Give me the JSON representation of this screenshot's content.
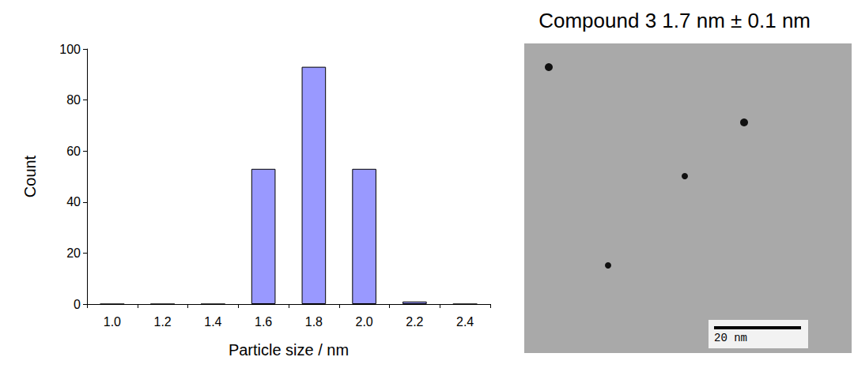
{
  "chart_data": {
    "type": "bar",
    "title": "Compound 3 1.7 nm ± 0.1 nm",
    "x_label": "Particle size / nm",
    "y_label": "Count",
    "categories": [
      "1.0",
      "1.2",
      "1.4",
      "1.6",
      "1.8",
      "2.0",
      "2.2",
      "2.4"
    ],
    "values": [
      0,
      0,
      0,
      53,
      93,
      53,
      1,
      0
    ],
    "color": "#9999ff",
    "ylim": [
      0,
      100
    ],
    "yticks": [
      0,
      20,
      40,
      60,
      80,
      100
    ],
    "grid": false
  },
  "micrograph": {
    "scale_bar_label": "20 nm"
  }
}
